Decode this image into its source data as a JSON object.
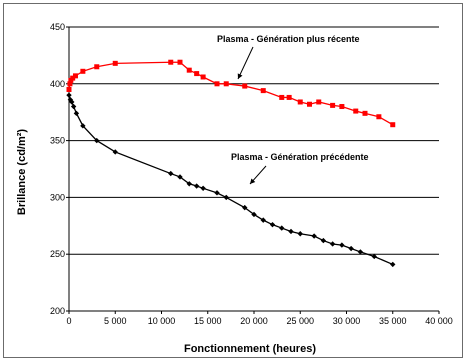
{
  "chart_data": {
    "type": "line",
    "xlabel": "Fonctionnement (heures)",
    "ylabel": "Brillance (cd/m²)",
    "xlim": [
      0,
      40000
    ],
    "ylim": [
      200,
      450
    ],
    "x_ticks": [
      0,
      5000,
      10000,
      15000,
      20000,
      25000,
      30000,
      35000,
      40000
    ],
    "x_tick_labels": [
      "0",
      "5 000",
      "10 000",
      "15 000",
      "20 000",
      "25 000",
      "30 000",
      "35 000",
      "40 000"
    ],
    "y_ticks": [
      200,
      250,
      300,
      350,
      400,
      450
    ],
    "y_tick_labels": [
      "200",
      "250",
      "300",
      "350",
      "400",
      "450"
    ],
    "grid": {
      "horizontal": true,
      "vertical": false
    },
    "series": [
      {
        "name": "Plasma - Génération plus récente",
        "color": "#ff0000",
        "marker": "square",
        "points": [
          [
            0,
            395
          ],
          [
            100,
            400
          ],
          [
            200,
            403
          ],
          [
            400,
            405
          ],
          [
            700,
            407
          ],
          [
            1500,
            411
          ],
          [
            3000,
            415
          ],
          [
            5000,
            418
          ],
          [
            11000,
            419
          ],
          [
            12000,
            419
          ],
          [
            13000,
            412
          ],
          [
            13800,
            409
          ],
          [
            14500,
            406
          ],
          [
            16000,
            400
          ],
          [
            17000,
            400
          ],
          [
            19000,
            398
          ],
          [
            21000,
            394
          ],
          [
            23000,
            388
          ],
          [
            23800,
            388
          ],
          [
            25000,
            384
          ],
          [
            26000,
            382
          ],
          [
            27000,
            384
          ],
          [
            28500,
            381
          ],
          [
            29500,
            380
          ],
          [
            31000,
            376
          ],
          [
            32000,
            374
          ],
          [
            33500,
            371
          ],
          [
            35000,
            364
          ]
        ]
      },
      {
        "name": "Plasma - Génération précédente",
        "color": "#000000",
        "marker": "diamond",
        "points": [
          [
            0,
            390
          ],
          [
            150,
            386
          ],
          [
            300,
            384
          ],
          [
            500,
            380
          ],
          [
            800,
            374
          ],
          [
            1500,
            363
          ],
          [
            3000,
            350
          ],
          [
            5000,
            340
          ],
          [
            11000,
            321
          ],
          [
            12000,
            318
          ],
          [
            13000,
            312
          ],
          [
            13800,
            310
          ],
          [
            14500,
            308
          ],
          [
            16000,
            304
          ],
          [
            17000,
            300
          ],
          [
            19000,
            291
          ],
          [
            20000,
            285
          ],
          [
            21000,
            280
          ],
          [
            22000,
            276
          ],
          [
            23000,
            273
          ],
          [
            24000,
            270
          ],
          [
            25000,
            268
          ],
          [
            26500,
            266
          ],
          [
            27500,
            262
          ],
          [
            28500,
            259
          ],
          [
            29500,
            258
          ],
          [
            30500,
            255
          ],
          [
            31500,
            252
          ],
          [
            33000,
            248
          ],
          [
            35000,
            241
          ]
        ]
      }
    ],
    "annotations": [
      {
        "text": "Plasma - Génération plus récente",
        "series": 0,
        "arrow_to": [
          17000,
          400
        ]
      },
      {
        "text": "Plasma - Génération précédente",
        "series": 1,
        "arrow_to": [
          16000,
          304
        ]
      }
    ]
  }
}
